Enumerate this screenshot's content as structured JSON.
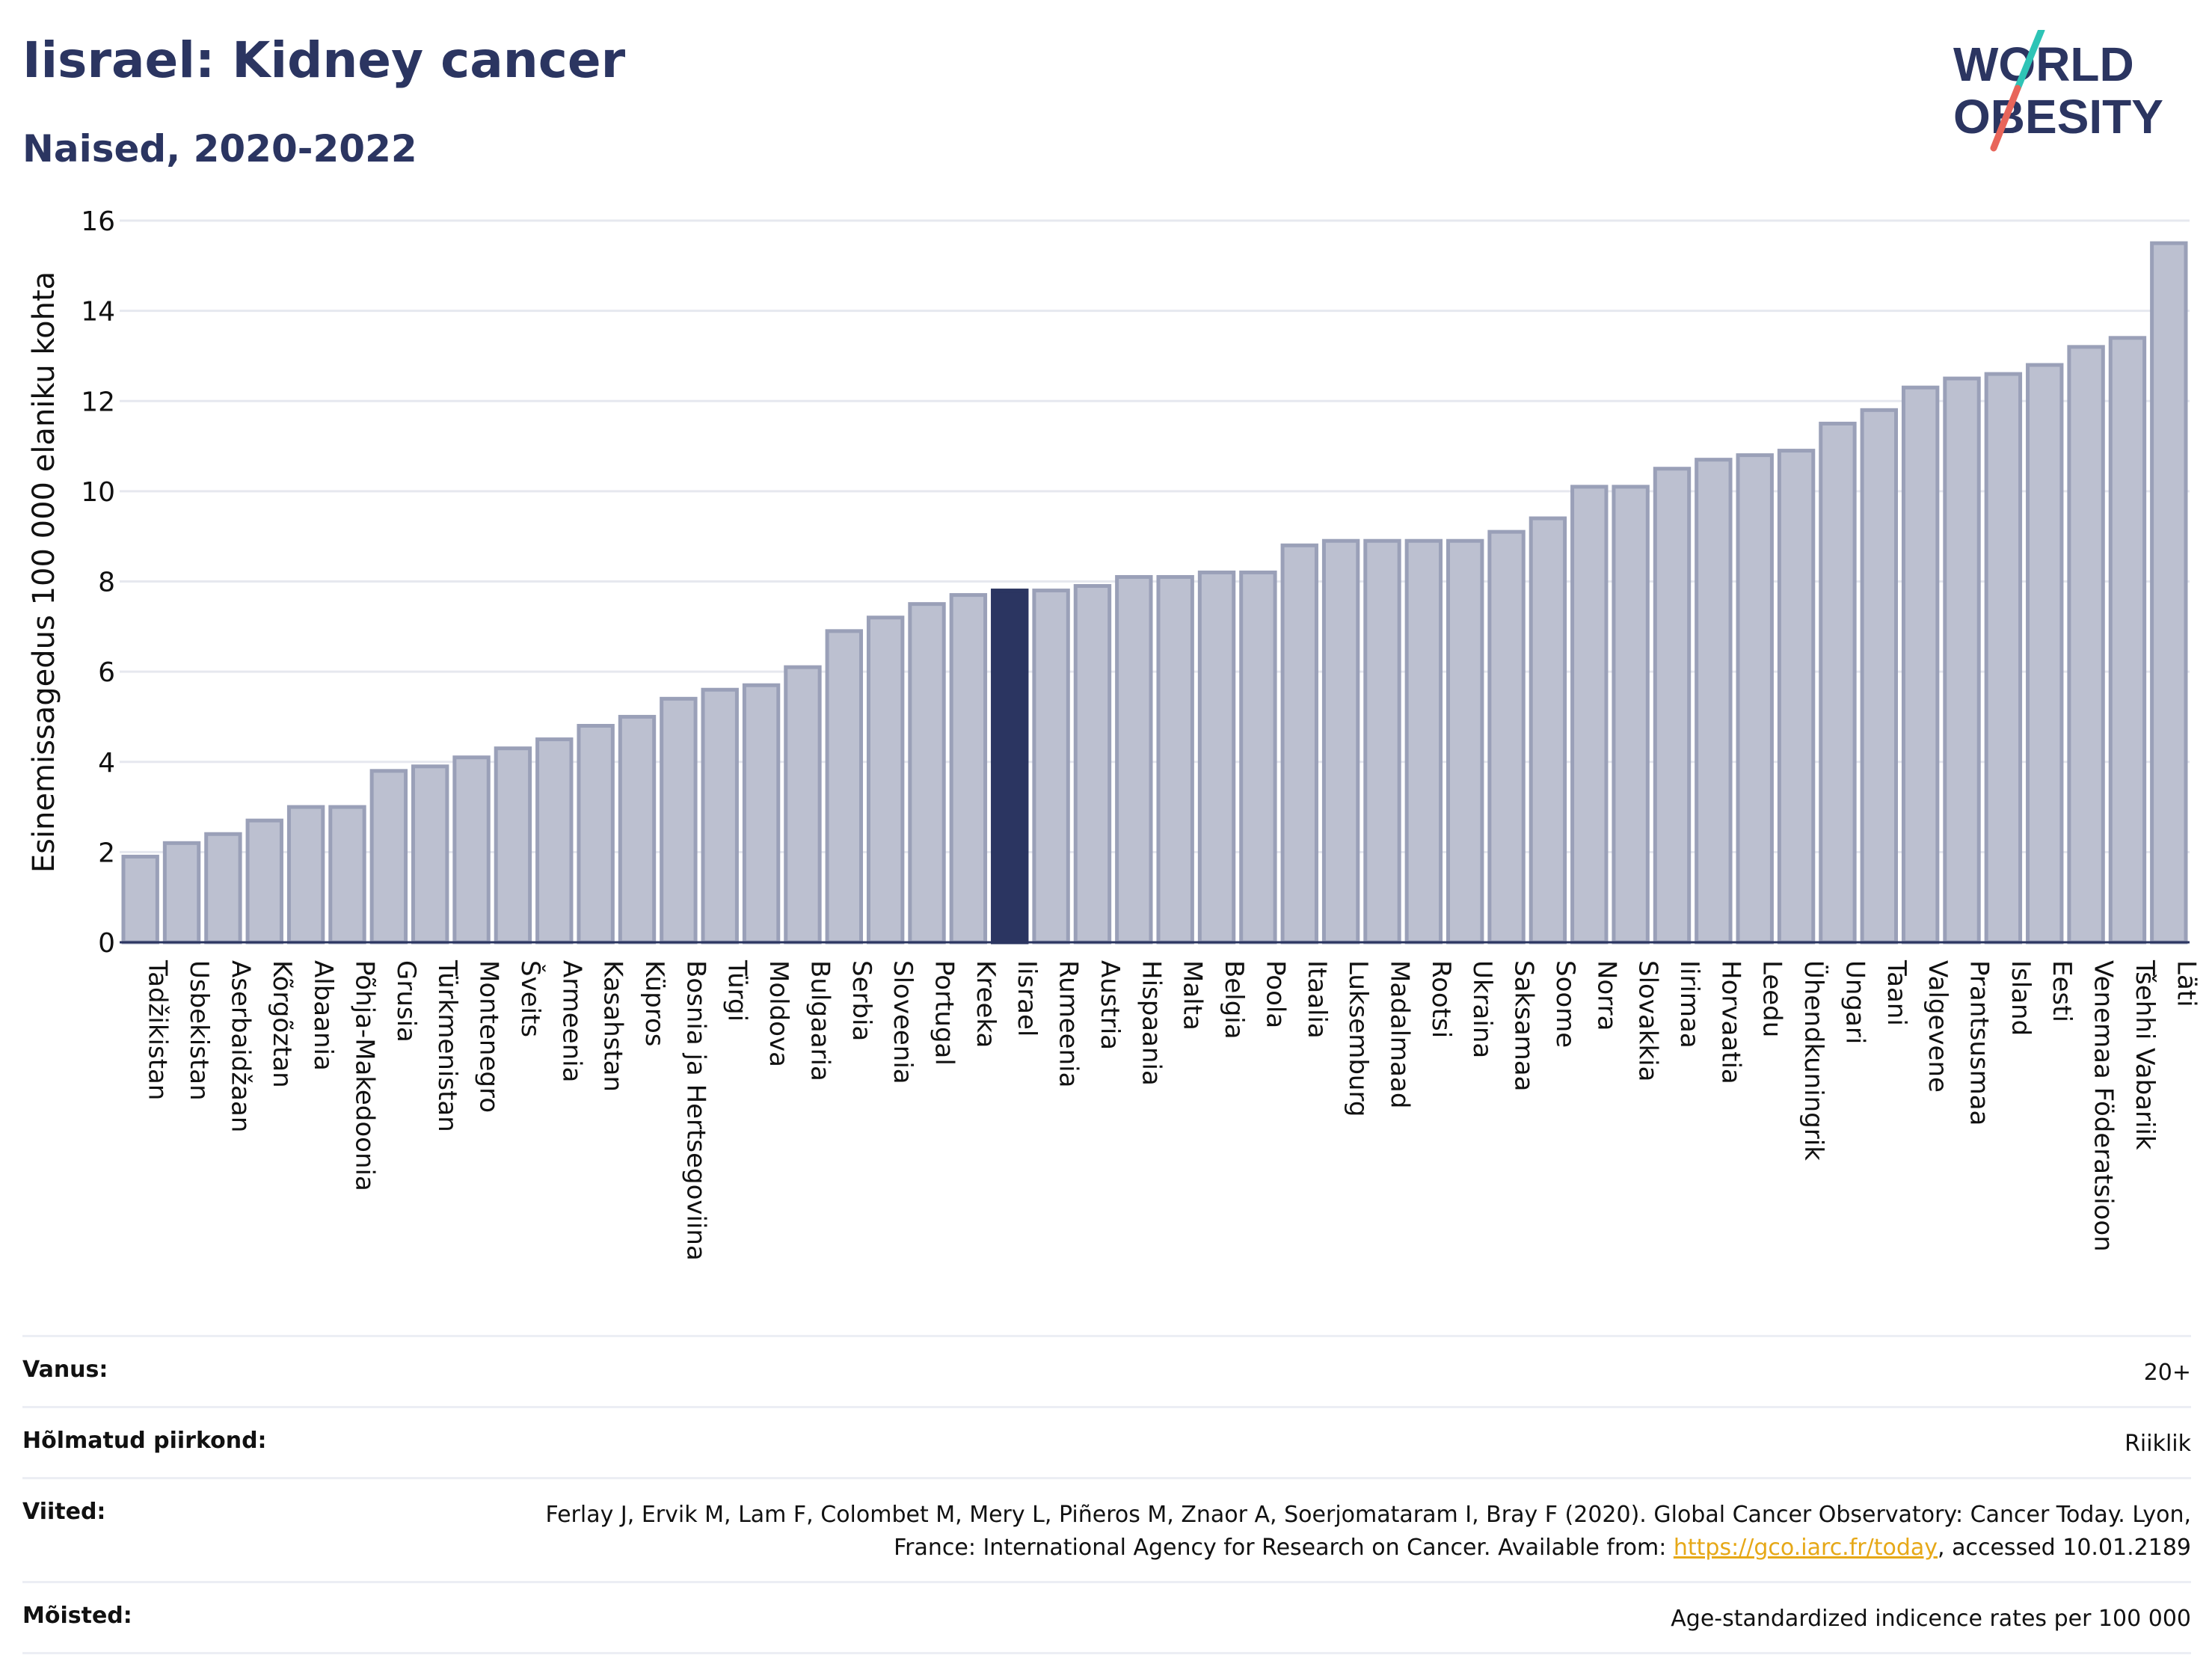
{
  "title": "Iisrael: Kidney cancer",
  "subtitle": "Naised, 2020-2022",
  "logo": {
    "line1": "WORLD",
    "line2": "OBESITY"
  },
  "colors": {
    "bar": "#bcc0d0",
    "bar_edge": "#9aa0b8",
    "highlight": "#2b3561",
    "accent_teal": "#2ec4b6",
    "accent_red": "#e8655a"
  },
  "chart_data": {
    "type": "bar",
    "ylabel": "Esinemissagedus 100 000 elaniku kohta",
    "ylim": [
      0,
      16
    ],
    "yticks": [
      0,
      2,
      4,
      6,
      8,
      10,
      12,
      14,
      16
    ],
    "grid": true,
    "highlight": "Iisrael",
    "categories": [
      "Tadžikistan",
      "Usbekistan",
      "Aserbaidžaan",
      "Kõrgõztan",
      "Albaania",
      "Põhja-Makedoonia",
      "Grusia",
      "Türkmenistan",
      "Montenegro",
      "Šveits",
      "Armeenia",
      "Kasahstan",
      "Küpros",
      "Bosnia ja Hertsegoviina",
      "Türgi",
      "Moldova",
      "Bulgaaria",
      "Serbia",
      "Sloveenia",
      "Portugal",
      "Kreeka",
      "Iisrael",
      "Rumeenia",
      "Austria",
      "Hispaania",
      "Malta",
      "Belgia",
      "Poola",
      "Itaalia",
      "Luksemburg",
      "Madalmaad",
      "Rootsi",
      "Ukraina",
      "Saksamaa",
      "Soome",
      "Norra",
      "Slovakkia",
      "Iirimaa",
      "Horvaatia",
      "Leedu",
      "Ühendkuningrik",
      "Ungari",
      "Taani",
      "Valgevene",
      "Prantsusmaa",
      "Island",
      "Eesti",
      "Venemaa Föderatsioon",
      "Tšehhi Vabariik",
      "Läti"
    ],
    "values": [
      1.9,
      2.2,
      2.4,
      2.7,
      3.0,
      3.0,
      3.8,
      3.9,
      4.1,
      4.3,
      4.5,
      4.8,
      5.0,
      5.4,
      5.6,
      5.7,
      6.1,
      6.9,
      7.2,
      7.5,
      7.7,
      7.8,
      7.8,
      7.9,
      8.1,
      8.1,
      8.2,
      8.2,
      8.8,
      8.9,
      8.9,
      8.9,
      8.9,
      9.1,
      9.4,
      10.1,
      10.1,
      10.5,
      10.7,
      10.8,
      10.9,
      11.5,
      11.8,
      12.3,
      12.5,
      12.6,
      12.8,
      13.2,
      13.4,
      15.5
    ]
  },
  "meta": [
    {
      "label": "Vanus:",
      "value": "20+"
    },
    {
      "label": "Hõlmatud piirkond:",
      "value": "Riiklik"
    },
    {
      "label": "Viited:",
      "value_pre": "Ferlay J, Ervik M, Lam F, Colombet M, Mery L, Piñeros M, Znaor A, Soerjomataram I, Bray F (2020). Global Cancer Observatory: Cancer Today. Lyon, France: International Agency for Research on Cancer. Available from: ",
      "link": "https://gco.iarc.fr/today",
      "value_post": ", accessed 10.01.2189"
    },
    {
      "label": "Mõisted:",
      "value": "Age-standardized indicence rates per 100 000"
    }
  ]
}
